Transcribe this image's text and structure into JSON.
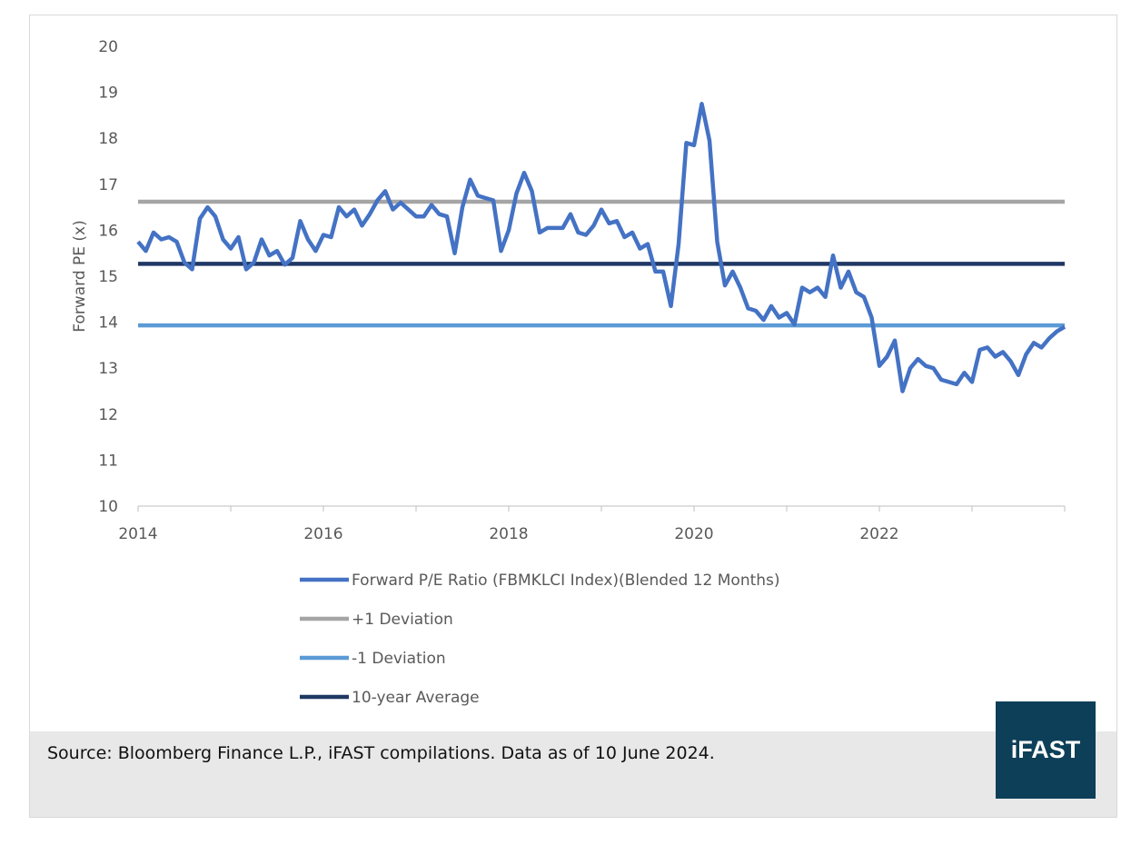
{
  "footer": {
    "source": "Source: Bloomberg Finance L.P., iFAST compilations. Data as of 10 June 2024.",
    "logo_text": "iFAST",
    "logo_color": "#0d3f59"
  },
  "chart_data": {
    "type": "line",
    "title": "",
    "xlabel": "",
    "ylabel": "Forward PE (x)",
    "ylim": [
      10,
      20
    ],
    "yticks": [
      10,
      11,
      12,
      13,
      14,
      15,
      16,
      17,
      18,
      19,
      20
    ],
    "xlim": [
      2014,
      2024
    ],
    "xticks": [
      "2014",
      "2016",
      "2018",
      "2020",
      "2022"
    ],
    "grid": false,
    "legend_position": "bottom",
    "series": [
      {
        "name": "Forward P/E Ratio (FBMKLCI Index)(Blended 12 Months)",
        "color": "#4472c4",
        "x": [
          2014.0,
          2014.083,
          2014.167,
          2014.25,
          2014.333,
          2014.417,
          2014.5,
          2014.583,
          2014.667,
          2014.75,
          2014.833,
          2014.917,
          2015.0,
          2015.083,
          2015.167,
          2015.25,
          2015.333,
          2015.417,
          2015.5,
          2015.583,
          2015.667,
          2015.75,
          2015.833,
          2015.917,
          2016.0,
          2016.083,
          2016.167,
          2016.25,
          2016.333,
          2016.417,
          2016.5,
          2016.583,
          2016.667,
          2016.75,
          2016.833,
          2016.917,
          2017.0,
          2017.083,
          2017.167,
          2017.25,
          2017.333,
          2017.417,
          2017.5,
          2017.583,
          2017.667,
          2017.75,
          2017.833,
          2017.917,
          2018.0,
          2018.083,
          2018.167,
          2018.25,
          2018.333,
          2018.417,
          2018.5,
          2018.583,
          2018.667,
          2018.75,
          2018.833,
          2018.917,
          2019.0,
          2019.083,
          2019.167,
          2019.25,
          2019.333,
          2019.417,
          2019.5,
          2019.583,
          2019.667,
          2019.75,
          2019.833,
          2019.917,
          2020.0,
          2020.083,
          2020.167,
          2020.25,
          2020.333,
          2020.417,
          2020.5,
          2020.583,
          2020.667,
          2020.75,
          2020.833,
          2020.917,
          2021.0,
          2021.083,
          2021.167,
          2021.25,
          2021.333,
          2021.417,
          2021.5,
          2021.583,
          2021.667,
          2021.75,
          2021.833,
          2021.917,
          2022.0,
          2022.083,
          2022.167,
          2022.25,
          2022.333,
          2022.417,
          2022.5,
          2022.583,
          2022.667,
          2022.75,
          2022.833,
          2022.917,
          2023.0,
          2023.083,
          2023.167,
          2023.25,
          2023.333,
          2023.417,
          2023.5,
          2023.583,
          2023.667,
          2023.75,
          2023.833,
          2023.917,
          2024.0
        ],
        "values": [
          15.75,
          15.55,
          15.95,
          15.8,
          15.85,
          15.75,
          15.3,
          15.15,
          16.25,
          16.5,
          16.3,
          15.8,
          15.6,
          15.85,
          15.15,
          15.3,
          15.8,
          15.45,
          15.55,
          15.25,
          15.4,
          16.2,
          15.8,
          15.55,
          15.9,
          15.85,
          16.5,
          16.3,
          16.45,
          16.1,
          16.35,
          16.65,
          16.85,
          16.45,
          16.6,
          16.45,
          16.3,
          16.3,
          16.55,
          16.35,
          16.3,
          15.5,
          16.5,
          17.1,
          16.75,
          16.7,
          16.65,
          15.55,
          16.0,
          16.8,
          17.25,
          16.85,
          15.95,
          16.05,
          16.05,
          16.05,
          16.35,
          15.95,
          15.9,
          16.1,
          16.45,
          16.15,
          16.2,
          15.85,
          15.95,
          15.6,
          15.7,
          15.1,
          15.1,
          14.35,
          15.7,
          17.9,
          17.85,
          18.75,
          17.95,
          15.75,
          14.8,
          15.1,
          14.75,
          14.3,
          14.25,
          14.05,
          14.35,
          14.1,
          14.2,
          13.95,
          14.75,
          14.65,
          14.75,
          14.55,
          15.45,
          14.75,
          15.1,
          14.65,
          14.55,
          14.1,
          13.05,
          13.25,
          13.6,
          12.5,
          13.0,
          13.2,
          13.05,
          13.0,
          12.75,
          12.7,
          12.65,
          12.9,
          12.7,
          13.4,
          13.45,
          13.25,
          13.35,
          13.15,
          12.85,
          13.3,
          13.55,
          13.45,
          13.65,
          13.8,
          13.9
        ]
      },
      {
        "name": "+1 Deviation",
        "color": "#a5a5a5",
        "constant": 16.62
      },
      {
        "name": "-1 Deviation",
        "color": "#5b9bd5",
        "constant": 13.93
      },
      {
        "name": "10-year Average",
        "color": "#1f3864",
        "constant": 15.27
      }
    ]
  }
}
